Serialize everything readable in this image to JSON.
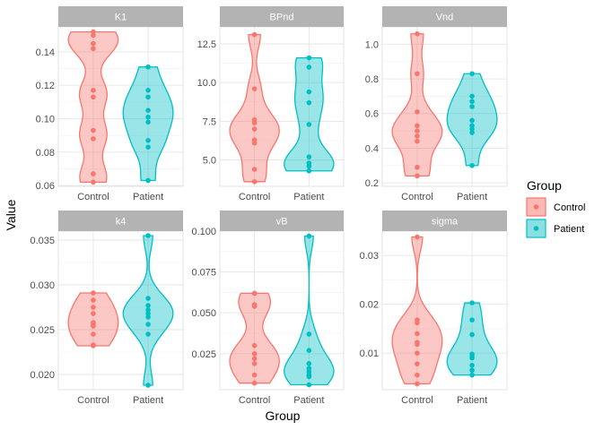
{
  "chart_data": {
    "type": "violin",
    "xlabel": "Group",
    "ylabel": "Value",
    "legend": {
      "title": "Group",
      "position": "right",
      "entries": [
        {
          "name": "Control",
          "color": "#F8766D",
          "fill": "#FBB9B4"
        },
        {
          "name": "Patient",
          "color": "#00BFC4",
          "fill": "#8ADFE1"
        }
      ]
    },
    "grid": true,
    "categories": [
      "Control",
      "Patient"
    ],
    "panels": [
      {
        "title": "K1",
        "ylim": [
          0.0595,
          0.155
        ],
        "yticks": [
          0.06,
          0.08,
          0.1,
          0.12,
          0.14
        ],
        "ytick_labels": [
          "0.06",
          "0.08",
          "0.10",
          "0.12",
          "0.14"
        ],
        "series": [
          {
            "name": "Control",
            "values": [
              0.152,
              0.15,
              0.145,
              0.142,
              0.117,
              0.113,
              0.093,
              0.088,
              0.067,
              0.062
            ]
          },
          {
            "name": "Patient",
            "values": [
              0.131,
              0.117,
              0.113,
              0.105,
              0.101,
              0.098,
              0.087,
              0.083,
              0.063
            ]
          }
        ]
      },
      {
        "title": "BPnd",
        "ylim": [
          3.3,
          13.6
        ],
        "yticks": [
          5.0,
          7.5,
          10.0,
          12.5
        ],
        "ytick_labels": [
          "5.0",
          "7.5",
          "10.0",
          "12.5"
        ],
        "series": [
          {
            "name": "Control",
            "values": [
              13.1,
              9.6,
              7.6,
              7.4,
              7.0,
              6.3,
              6.1,
              4.4,
              3.6
            ]
          },
          {
            "name": "Patient",
            "values": [
              11.6,
              11.0,
              9.4,
              8.7,
              7.3,
              5.2,
              4.8,
              4.6,
              4.3
            ]
          }
        ]
      },
      {
        "title": "Vnd",
        "ylim": [
          0.18,
          1.1
        ],
        "yticks": [
          0.2,
          0.4,
          0.6,
          0.8,
          1.0
        ],
        "ytick_labels": [
          "0.2",
          "0.4",
          "0.6",
          "0.8",
          "1.0"
        ],
        "series": [
          {
            "name": "Control",
            "values": [
              1.06,
              0.83,
              0.61,
              0.53,
              0.5,
              0.47,
              0.44,
              0.29,
              0.24
            ]
          },
          {
            "name": "Patient",
            "values": [
              0.83,
              0.7,
              0.67,
              0.64,
              0.56,
              0.53,
              0.51,
              0.49,
              0.3
            ]
          }
        ]
      },
      {
        "title": "k4",
        "ylim": [
          0.0183,
          0.036
        ],
        "yticks": [
          0.02,
          0.025,
          0.03,
          0.035
        ],
        "ytick_labels": [
          "0.020",
          "0.025",
          "0.030",
          "0.035"
        ],
        "series": [
          {
            "name": "Control",
            "values": [
              0.0291,
              0.0283,
              0.0275,
              0.0268,
              0.0258,
              0.0256,
              0.0254,
              0.0245,
              0.0233,
              0.0232
            ]
          },
          {
            "name": "Patient",
            "values": [
              0.0355,
              0.0285,
              0.0277,
              0.0272,
              0.0268,
              0.0264,
              0.0256,
              0.0245,
              0.0188
            ]
          }
        ]
      },
      {
        "title": "vB",
        "ylim": [
          0.003,
          0.1
        ],
        "yticks": [
          0.025,
          0.05,
          0.075,
          0.1
        ],
        "ytick_labels": [
          "0.025",
          "0.050",
          "0.075",
          "0.100"
        ],
        "series": [
          {
            "name": "Control",
            "values": [
              0.062,
              0.055,
              0.054,
              0.03,
              0.025,
              0.022,
              0.019,
              0.012,
              0.007
            ]
          },
          {
            "name": "Patient",
            "values": [
              0.097,
              0.037,
              0.027,
              0.019,
              0.016,
              0.014,
              0.012,
              0.011,
              0.006
            ]
          }
        ]
      },
      {
        "title": "sigma",
        "ylim": [
          0.0025,
          0.035
        ],
        "yticks": [
          0.01,
          0.02,
          0.03
        ],
        "ytick_labels": [
          "0.01",
          "0.02",
          "0.03"
        ],
        "series": [
          {
            "name": "Control",
            "values": [
              0.0338,
              0.0168,
              0.0162,
              0.014,
              0.0122,
              0.0118,
              0.01,
              0.0078,
              0.0055,
              0.0037
            ]
          },
          {
            "name": "Patient",
            "values": [
              0.0203,
              0.0168,
              0.0138,
              0.0098,
              0.0093,
              0.009,
              0.0075,
              0.0065,
              0.0055
            ]
          }
        ]
      }
    ]
  }
}
